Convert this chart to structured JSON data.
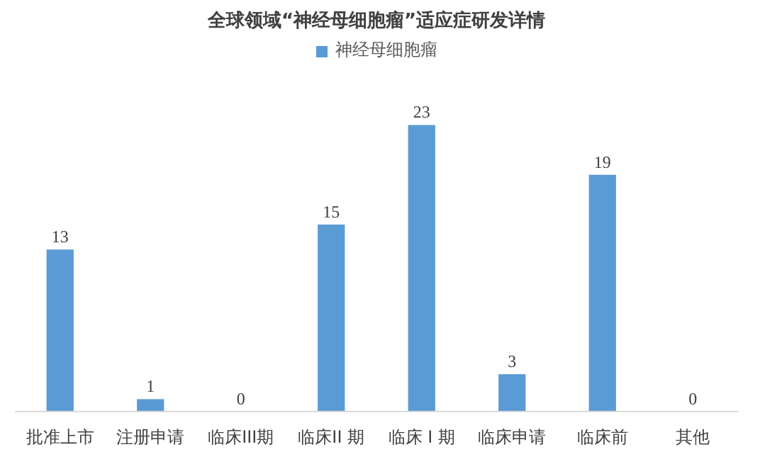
{
  "chart_data": {
    "type": "bar",
    "title": "全球领域“神经母细胞瘤”适应症研发详情",
    "categories": [
      "批准上市",
      "注册申请",
      "临床III期",
      "临床II 期",
      "临床 I 期",
      "临床申请",
      "临床前",
      "其他"
    ],
    "series": [
      {
        "name": "神经母细胞瘤",
        "color": "#5b9bd5",
        "values": [
          13,
          1,
          0,
          15,
          23,
          3,
          19,
          0
        ]
      }
    ],
    "data_labels": true,
    "legend": "top",
    "grid": false
  }
}
